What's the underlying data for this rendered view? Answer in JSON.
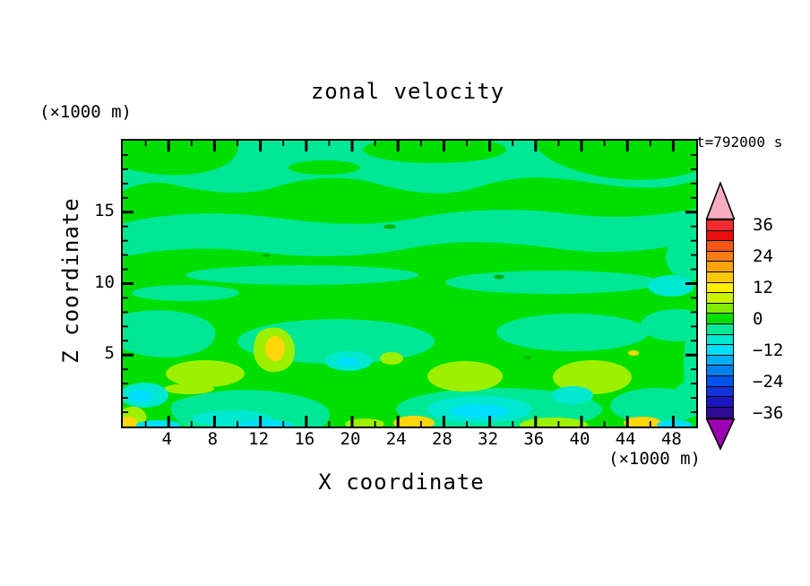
{
  "figure": {
    "title": "zonal velocity",
    "time_label": "t=792000 s"
  },
  "axes": {
    "x": {
      "label": "X coordinate",
      "unit": "(×1000 m)",
      "range": [
        0,
        50
      ],
      "ticks": [
        4,
        8,
        12,
        16,
        20,
        24,
        28,
        32,
        36,
        40,
        44,
        48
      ],
      "minor_tick_step": 2,
      "major_tick_step": 4
    },
    "z": {
      "label": "Z coordinate",
      "unit": "(×1000 m)",
      "range": [
        0,
        20
      ],
      "ticks": [
        5,
        10,
        15
      ],
      "minor_tick_step": 1,
      "major_tick_step": 5
    }
  },
  "colorbar": {
    "labels": [
      "36",
      "24",
      "12",
      "0",
      "−12",
      "−24",
      "−36"
    ],
    "label_cell_index": [
      0,
      3,
      6,
      9,
      12,
      15,
      18
    ],
    "contour_interval": 4,
    "cell_colors": [
      "#F22C2C",
      "#E90D0D",
      "#F25716",
      "#F97D12",
      "#FBA40C",
      "#FCC807",
      "#FDF003",
      "#C9F300",
      "#80EC00",
      "#00DF00",
      "#00E896",
      "#00E8CE",
      "#00DFFF",
      "#00AFF5",
      "#0080F0",
      "#0054EB",
      "#1232DC",
      "#1B16BE",
      "#2F0C96"
    ],
    "over_arrow_color": "#F6ADBE",
    "under_arrow_color": "#9E00B4"
  },
  "chart_data": {
    "type": "heatmap",
    "title": "zonal velocity",
    "annotation": "t=792000 s",
    "xlabel": "X coordinate",
    "x_unit": "(×1000 m)",
    "xlim": [
      0,
      50
    ],
    "x_ticks": [
      4,
      8,
      12,
      16,
      20,
      24,
      28,
      32,
      36,
      40,
      44,
      48
    ],
    "ylabel": "Z coordinate",
    "y_unit": "(×1000 m)",
    "ylim": [
      0,
      20
    ],
    "y_ticks": [
      5,
      10,
      15
    ],
    "legend_position": "right colorbar with over/under arrows",
    "grid": false,
    "color_levels": {
      "labeled": [
        36,
        24,
        12,
        0,
        -12,
        -24,
        -36
      ],
      "interval": 4,
      "palette_top_to_bottom": [
        "#F22C2C",
        "#E90D0D",
        "#F25716",
        "#F97D12",
        "#FBA40C",
        "#FCC807",
        "#FDF003",
        "#C9F300",
        "#80EC00",
        "#00DF00",
        "#00E896",
        "#00E8CE",
        "#00DFFF",
        "#00AFF5",
        "#0080F0",
        "#0054EB",
        "#1232DC",
        "#1B16BE",
        "#2F0C96"
      ]
    },
    "dominant_field_colors": {
      "band_centered_0": "#00DF00",
      "band_centered_-4": "#00E896",
      "positive_patches_+4_to_+16": [
        "#9CF000",
        "#FFD60A"
      ],
      "negative_patches_-8_to_-16": [
        "#00E8CF",
        "#00DFFF"
      ]
    },
    "field_summary": "Horizontally streaked field dominated by the two contour bands adjacent to 0 (bright green and spring green) over the whole domain; isolated positive patches (yellow-green to gold, roughly +4 to +16) and negative patches (turquoise to cyan, roughly -8 to -16) concentrated below z≈5 and along the lower boundary."
  }
}
